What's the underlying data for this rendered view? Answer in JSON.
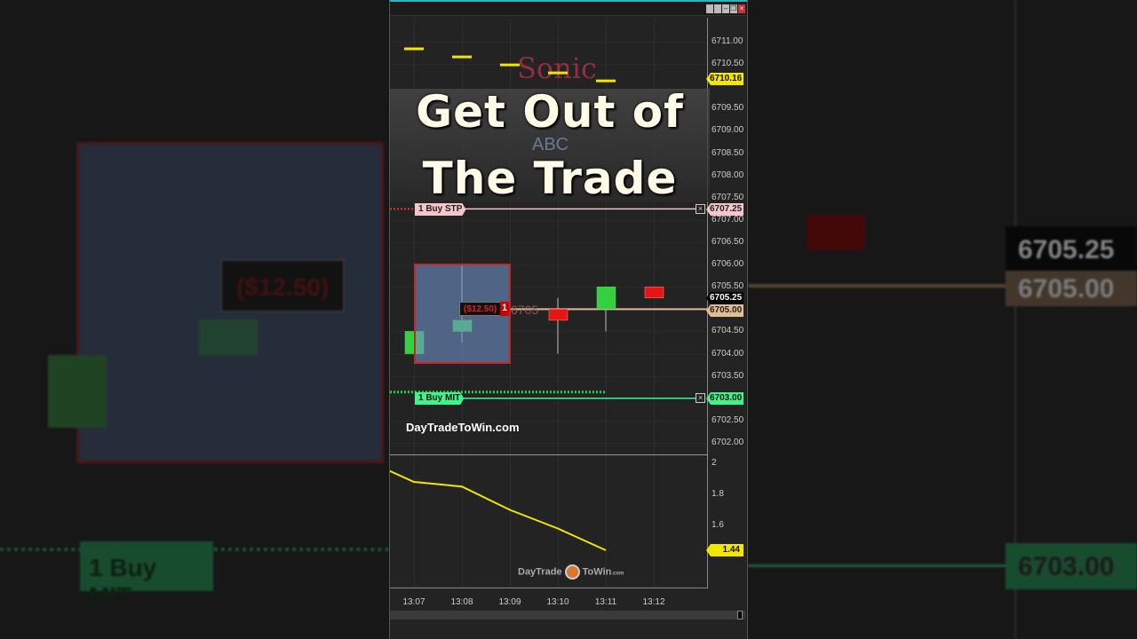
{
  "window": {
    "buttons": [
      "minimize",
      "maximize",
      "restore",
      "close"
    ]
  },
  "overlay": {
    "title_line1": "Get Out of",
    "title_line2": "The Trade",
    "watermark_sonic": "Sonic",
    "watermark_abc": "ABC",
    "site_text": "DayTradeToWin.com",
    "logo_left": "DayTrade",
    "logo_right": "ToWin",
    "logo_suffix": ".com"
  },
  "price_axis": {
    "ticks": [
      "6711.00",
      "6710.50",
      "6709.50",
      "6709.00",
      "6708.50",
      "6708.00",
      "6707.50",
      "6707.00",
      "6706.50",
      "6706.00",
      "6705.50",
      "6704.50",
      "6704.00",
      "6703.50",
      "6702.50",
      "6702.00"
    ]
  },
  "tags": {
    "last_indicator": "6710.16",
    "buy_stop_price": "6707.25",
    "current_price": "6705.25",
    "position_price": "6705.00",
    "buy_mit_price": "6703.00"
  },
  "orders": {
    "buy_stop_label": "1 Buy STP",
    "buy_mit_label": "1 Buy MIT",
    "pnl": "($12.50)",
    "qty": "1",
    "entry_label": "6705"
  },
  "indicator_axis": {
    "ticks": [
      "2",
      "1.8",
      "1.6"
    ],
    "current": "1.44"
  },
  "time_axis": [
    "13:07",
    "13:08",
    "13:09",
    "13:10",
    "13:11",
    "13:12"
  ],
  "colors": {
    "up": "#33d13f",
    "down": "#e81414",
    "buy_stp": "#f4c6cc",
    "buy_mit": "#3cf58c",
    "indicator": "#f5e600",
    "position": "#e2bd92"
  },
  "chart_data": {
    "type": "candlestick",
    "x": [
      "13:07",
      "13:08",
      "13:09",
      "13:10",
      "13:11",
      "13:12"
    ],
    "candles": [
      {
        "t": "13:07",
        "open": 6704.0,
        "close": 6704.5,
        "high": 6704.5,
        "low": 6704.0
      },
      {
        "t": "13:08",
        "open": 6704.5,
        "close": 6704.75,
        "high": 6706.0,
        "low": 6704.25
      },
      {
        "t": "13:10",
        "open": 6705.0,
        "close": 6704.75,
        "high": 6705.25,
        "low": 6704.0
      },
      {
        "t": "13:11",
        "open": 6705.0,
        "close": 6705.5,
        "high": 6705.5,
        "low": 6704.5
      },
      {
        "t": "13:12",
        "open": 6705.5,
        "close": 6705.25,
        "high": 6705.5,
        "low": 6705.25
      }
    ],
    "yellow_dashes": [
      6710.8,
      6710.7,
      6710.6,
      6710.5,
      6710.4
    ],
    "indicator": {
      "x": [
        "13:06.5",
        "13:07",
        "13:08",
        "13:09",
        "13:10",
        "13:11"
      ],
      "values": [
        1.95,
        1.88,
        1.85,
        1.7,
        1.58,
        1.44
      ]
    },
    "ylim": [
      6701.75,
      6711.5
    ],
    "indicator_ylim": [
      1.2,
      2.05
    ]
  }
}
